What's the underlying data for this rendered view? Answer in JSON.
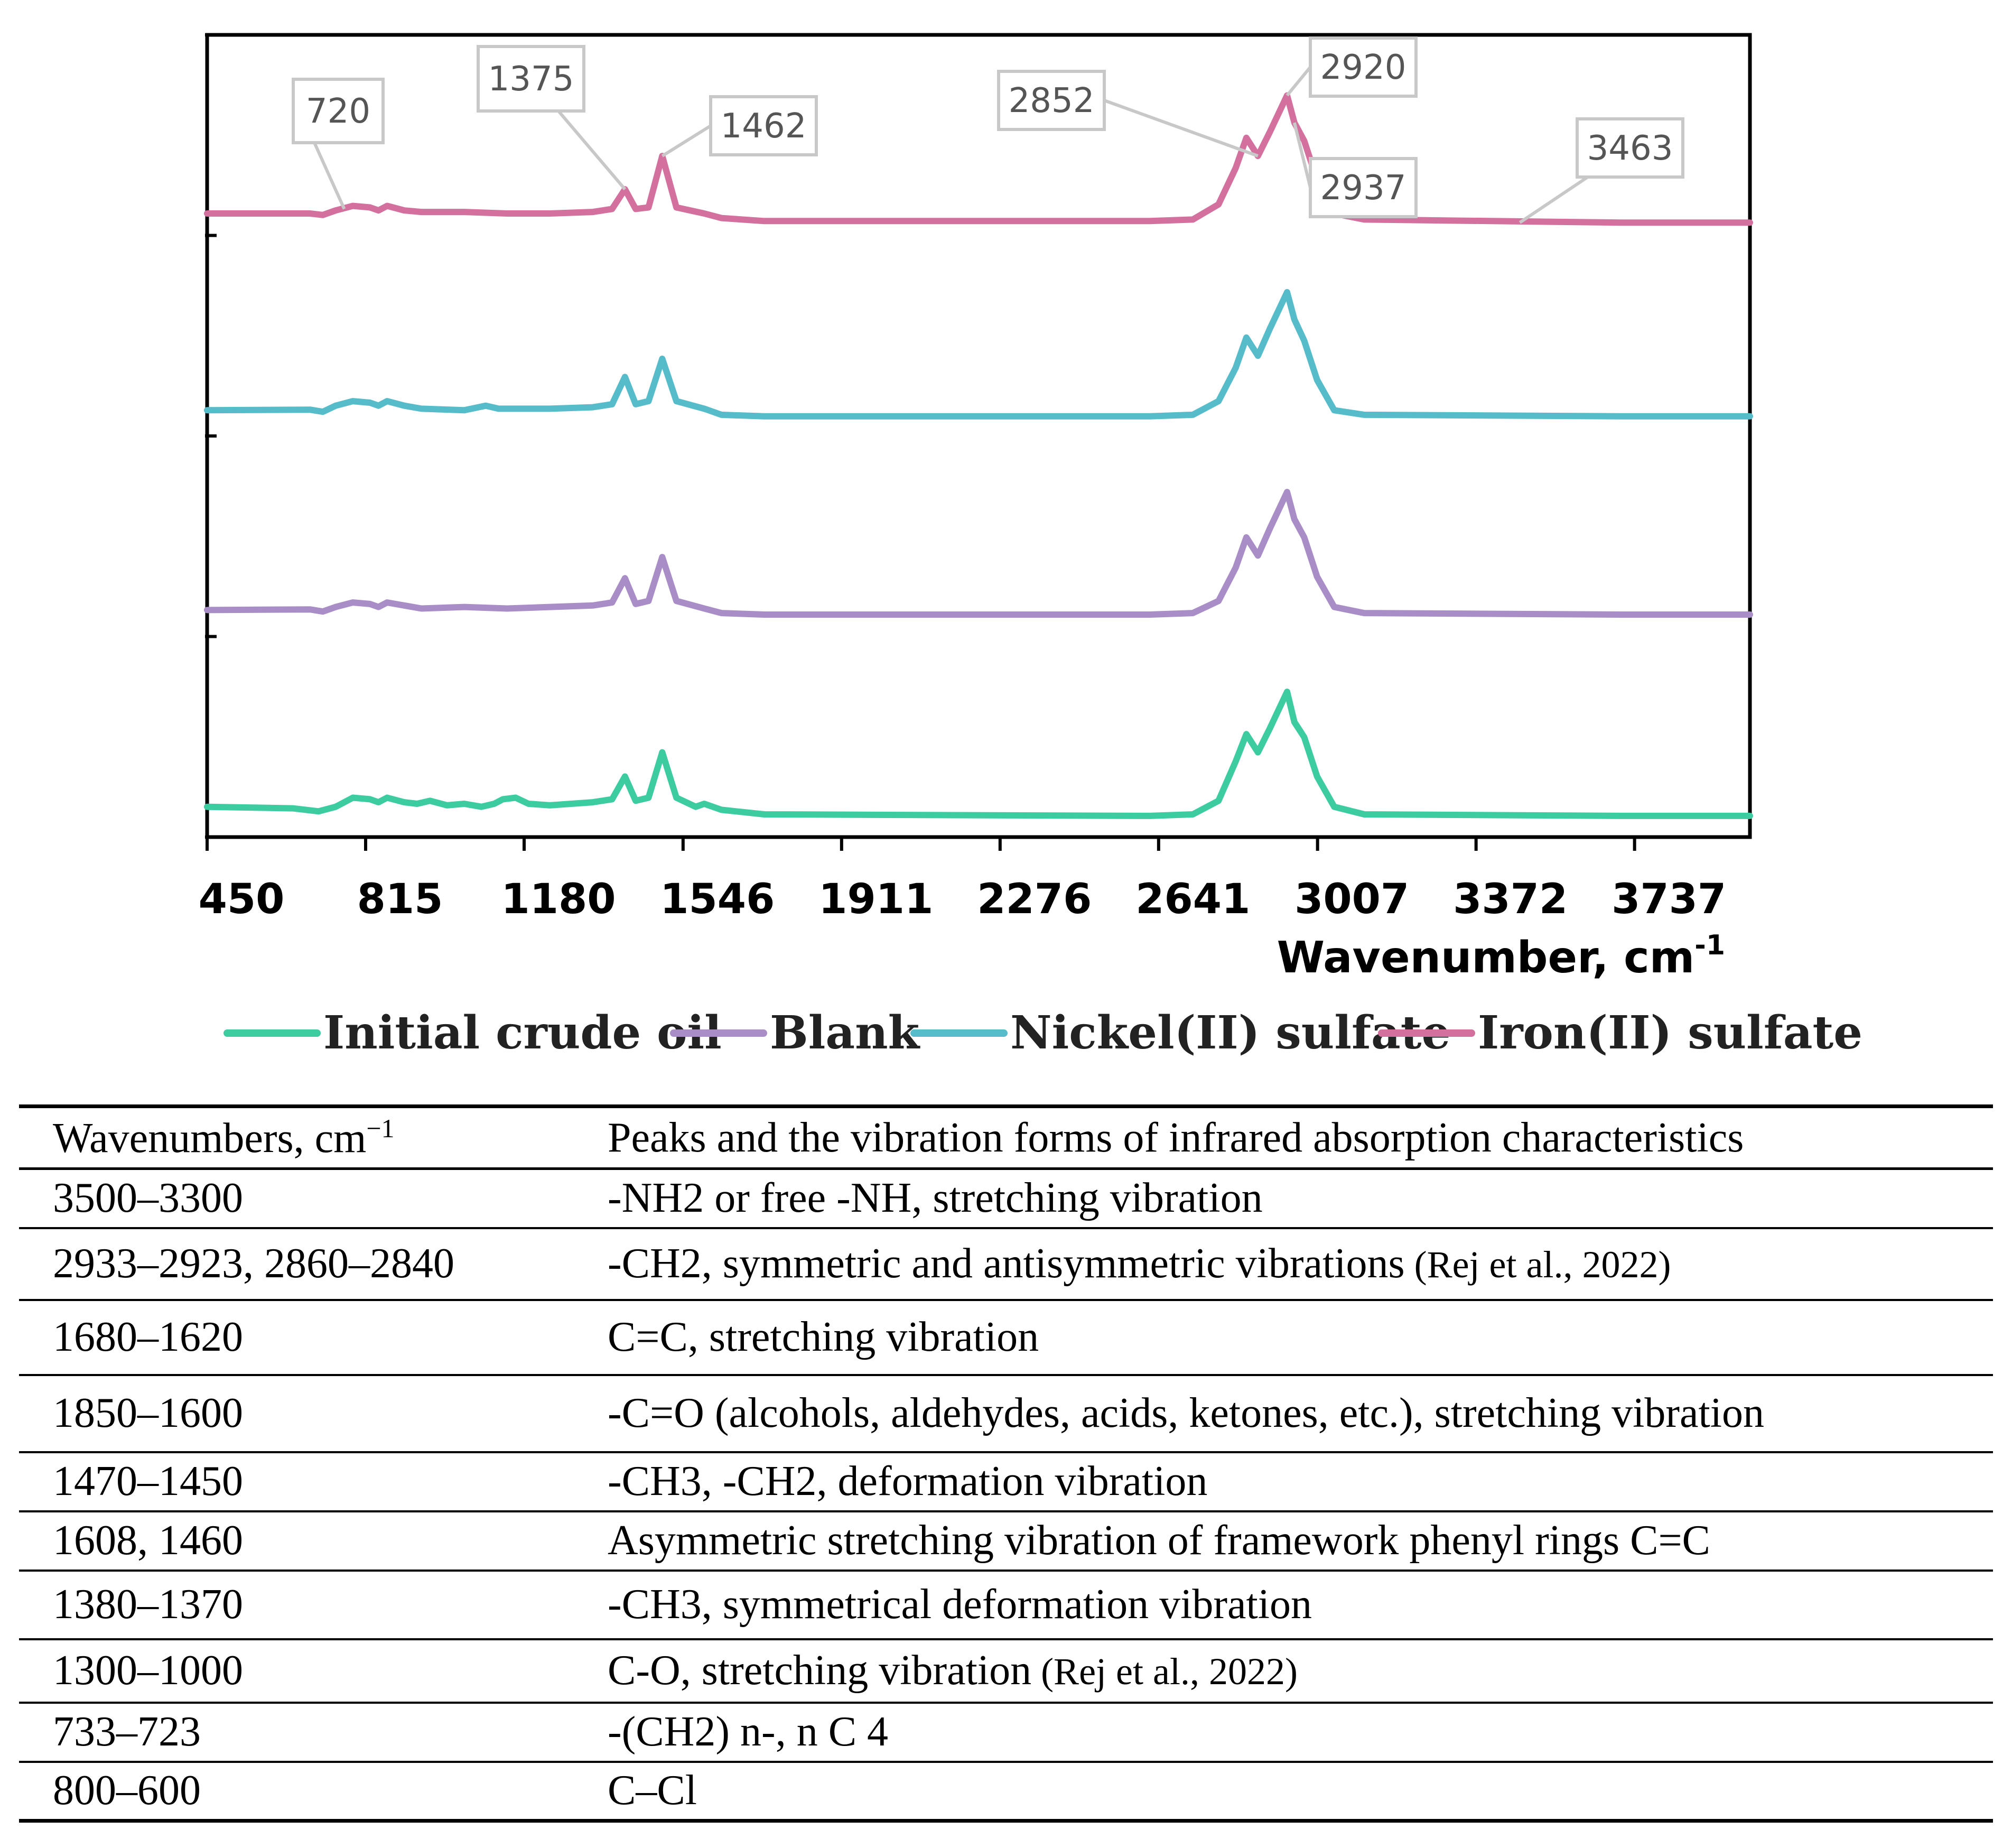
{
  "chart_data": {
    "type": "line",
    "xlabel": "Wavenumber, cm",
    "xlabel_superscript": "-1",
    "ylabel": "",
    "xlim": [
      400,
      4000
    ],
    "x_ticks": [
      450,
      815,
      1180,
      1546,
      1911,
      2276,
      2641,
      3007,
      3372,
      3737
    ],
    "y_ticks_count": 4,
    "grid": false,
    "legend_position": "bottom",
    "series": [
      {
        "name": "Initial crude oil",
        "color": "#3dcba0",
        "baseline": 0.1,
        "end_baseline": 0.07,
        "points": [
          [
            400,
            0.1
          ],
          [
            600,
            0.095
          ],
          [
            660,
            0.085
          ],
          [
            700,
            0.1
          ],
          [
            740,
            0.13
          ],
          [
            780,
            0.125
          ],
          [
            800,
            0.115
          ],
          [
            820,
            0.13
          ],
          [
            860,
            0.115
          ],
          [
            890,
            0.11
          ],
          [
            920,
            0.12
          ],
          [
            960,
            0.105
          ],
          [
            1000,
            0.11
          ],
          [
            1040,
            0.1
          ],
          [
            1070,
            0.11
          ],
          [
            1090,
            0.125
          ],
          [
            1120,
            0.13
          ],
          [
            1150,
            0.11
          ],
          [
            1200,
            0.105
          ],
          [
            1300,
            0.115
          ],
          [
            1345,
            0.125
          ],
          [
            1375,
            0.2
          ],
          [
            1400,
            0.12
          ],
          [
            1430,
            0.13
          ],
          [
            1462,
            0.28
          ],
          [
            1495,
            0.13
          ],
          [
            1540,
            0.1
          ],
          [
            1560,
            0.11
          ],
          [
            1600,
            0.09
          ],
          [
            1700,
            0.075
          ],
          [
            2600,
            0.07
          ],
          [
            2700,
            0.075
          ],
          [
            2760,
            0.12
          ],
          [
            2800,
            0.25
          ],
          [
            2825,
            0.34
          ],
          [
            2852,
            0.28
          ],
          [
            2880,
            0.36
          ],
          [
            2920,
            0.48
          ],
          [
            2937,
            0.38
          ],
          [
            2960,
            0.33
          ],
          [
            2990,
            0.2
          ],
          [
            3030,
            0.1
          ],
          [
            3100,
            0.075
          ],
          [
            3700,
            0.07
          ],
          [
            4000,
            0.07
          ]
        ]
      },
      {
        "name": "Blank",
        "color": "#a88dc6",
        "baseline": 0.75,
        "end_baseline": 0.735,
        "points": [
          [
            400,
            0.75
          ],
          [
            640,
            0.752
          ],
          [
            670,
            0.745
          ],
          [
            700,
            0.76
          ],
          [
            740,
            0.775
          ],
          [
            780,
            0.77
          ],
          [
            800,
            0.76
          ],
          [
            820,
            0.775
          ],
          [
            860,
            0.765
          ],
          [
            900,
            0.755
          ],
          [
            1000,
            0.76
          ],
          [
            1100,
            0.755
          ],
          [
            1200,
            0.76
          ],
          [
            1300,
            0.765
          ],
          [
            1345,
            0.775
          ],
          [
            1375,
            0.855
          ],
          [
            1400,
            0.77
          ],
          [
            1430,
            0.78
          ],
          [
            1462,
            0.925
          ],
          [
            1495,
            0.78
          ],
          [
            1560,
            0.755
          ],
          [
            1600,
            0.74
          ],
          [
            1700,
            0.735
          ],
          [
            2600,
            0.735
          ],
          [
            2700,
            0.74
          ],
          [
            2760,
            0.78
          ],
          [
            2800,
            0.89
          ],
          [
            2825,
            0.99
          ],
          [
            2852,
            0.93
          ],
          [
            2880,
            1.02
          ],
          [
            2920,
            1.14
          ],
          [
            2937,
            1.05
          ],
          [
            2960,
            0.99
          ],
          [
            2990,
            0.86
          ],
          [
            3030,
            0.76
          ],
          [
            3100,
            0.74
          ],
          [
            3700,
            0.735
          ],
          [
            4000,
            0.735
          ]
        ]
      },
      {
        "name": "Nickel(II) sulfate",
        "color": "#56bcca",
        "baseline": 1.41,
        "end_baseline": 1.39,
        "points": [
          [
            400,
            1.41
          ],
          [
            640,
            1.412
          ],
          [
            670,
            1.405
          ],
          [
            700,
            1.425
          ],
          [
            740,
            1.44
          ],
          [
            780,
            1.435
          ],
          [
            800,
            1.425
          ],
          [
            820,
            1.44
          ],
          [
            860,
            1.425
          ],
          [
            900,
            1.415
          ],
          [
            1000,
            1.41
          ],
          [
            1050,
            1.425
          ],
          [
            1080,
            1.415
          ],
          [
            1200,
            1.415
          ],
          [
            1300,
            1.42
          ],
          [
            1345,
            1.43
          ],
          [
            1375,
            1.52
          ],
          [
            1400,
            1.43
          ],
          [
            1430,
            1.44
          ],
          [
            1462,
            1.58
          ],
          [
            1495,
            1.44
          ],
          [
            1560,
            1.415
          ],
          [
            1600,
            1.395
          ],
          [
            1700,
            1.39
          ],
          [
            2600,
            1.39
          ],
          [
            2700,
            1.395
          ],
          [
            2760,
            1.44
          ],
          [
            2800,
            1.55
          ],
          [
            2825,
            1.65
          ],
          [
            2852,
            1.59
          ],
          [
            2880,
            1.68
          ],
          [
            2920,
            1.8
          ],
          [
            2937,
            1.71
          ],
          [
            2960,
            1.64
          ],
          [
            2990,
            1.51
          ],
          [
            3030,
            1.41
          ],
          [
            3100,
            1.395
          ],
          [
            3700,
            1.39
          ],
          [
            4000,
            1.39
          ]
        ]
      },
      {
        "name": "Iron(II) sulfate",
        "color": "#d4709d",
        "baseline": 2.06,
        "end_baseline": 2.03,
        "points": [
          [
            400,
            2.06
          ],
          [
            640,
            2.06
          ],
          [
            670,
            2.055
          ],
          [
            700,
            2.07
          ],
          [
            740,
            2.085
          ],
          [
            780,
            2.08
          ],
          [
            800,
            2.07
          ],
          [
            820,
            2.085
          ],
          [
            860,
            2.07
          ],
          [
            900,
            2.065
          ],
          [
            1000,
            2.065
          ],
          [
            1100,
            2.06
          ],
          [
            1200,
            2.06
          ],
          [
            1300,
            2.065
          ],
          [
            1345,
            2.075
          ],
          [
            1375,
            2.14
          ],
          [
            1400,
            2.075
          ],
          [
            1430,
            2.08
          ],
          [
            1462,
            2.25
          ],
          [
            1495,
            2.08
          ],
          [
            1560,
            2.06
          ],
          [
            1600,
            2.045
          ],
          [
            1700,
            2.035
          ],
          [
            2600,
            2.035
          ],
          [
            2700,
            2.04
          ],
          [
            2760,
            2.09
          ],
          [
            2800,
            2.21
          ],
          [
            2825,
            2.31
          ],
          [
            2852,
            2.25
          ],
          [
            2880,
            2.33
          ],
          [
            2920,
            2.45
          ],
          [
            2937,
            2.36
          ],
          [
            2960,
            2.3
          ],
          [
            2990,
            2.17
          ],
          [
            3030,
            2.06
          ],
          [
            3100,
            2.04
          ],
          [
            3700,
            2.03
          ],
          [
            4000,
            2.03
          ]
        ]
      }
    ],
    "ylim": [
      0,
      2.65
    ],
    "annotations": [
      {
        "label": "720",
        "x": 720,
        "y": 2.075
      },
      {
        "label": "1375",
        "x": 1375,
        "y": 2.14
      },
      {
        "label": "1462",
        "x": 1462,
        "y": 2.25
      },
      {
        "label": "2852",
        "x": 2852,
        "y": 2.25
      },
      {
        "label": "2920",
        "x": 2920,
        "y": 2.45
      },
      {
        "label": "2937",
        "x": 2937,
        "y": 2.36
      },
      {
        "label": "3463",
        "x": 3463,
        "y": 2.03
      }
    ]
  },
  "table": {
    "header": {
      "col1": "Wavenumbers, cm",
      "col1_sup": "−1",
      "col2": "Peaks and the vibration forms of infrared absorption characteristics"
    },
    "rows": [
      {
        "wavenumbers": "3500–3300",
        "assignment": "-NH2 or free -NH, stretching vibration",
        "citation": ""
      },
      {
        "wavenumbers": "2933–2923, 2860–2840",
        "assignment": "-CH2, symmetric and antisymmetric vibrations",
        "citation": "(Rej et al., 2022)"
      },
      {
        "wavenumbers": "1680–1620",
        "assignment": "C=C, stretching vibration",
        "citation": ""
      },
      {
        "wavenumbers": "1850–1600",
        "assignment": "-C=O (alcohols, aldehydes, acids, ketones, etc.), stretching vibration",
        "citation": ""
      },
      {
        "wavenumbers": "1470–1450",
        "assignment": "-CH3, -CH2, deformation vibration",
        "citation": ""
      },
      {
        "wavenumbers": "1608, 1460",
        "assignment": "Asymmetric stretching vibration of framework phenyl rings C=C",
        "citation": ""
      },
      {
        "wavenumbers": "1380–1370",
        "assignment": "-CH3, symmetrical deformation vibration",
        "citation": ""
      },
      {
        "wavenumbers": "1300–1000",
        "assignment": "C-O, stretching vibration",
        "citation": "(Rej et al., 2022)"
      },
      {
        "wavenumbers": "733–723",
        "assignment": "-(CH2) n-, n C 4",
        "citation": ""
      },
      {
        "wavenumbers": "800–600",
        "assignment": "C–Cl",
        "citation": ""
      }
    ]
  }
}
